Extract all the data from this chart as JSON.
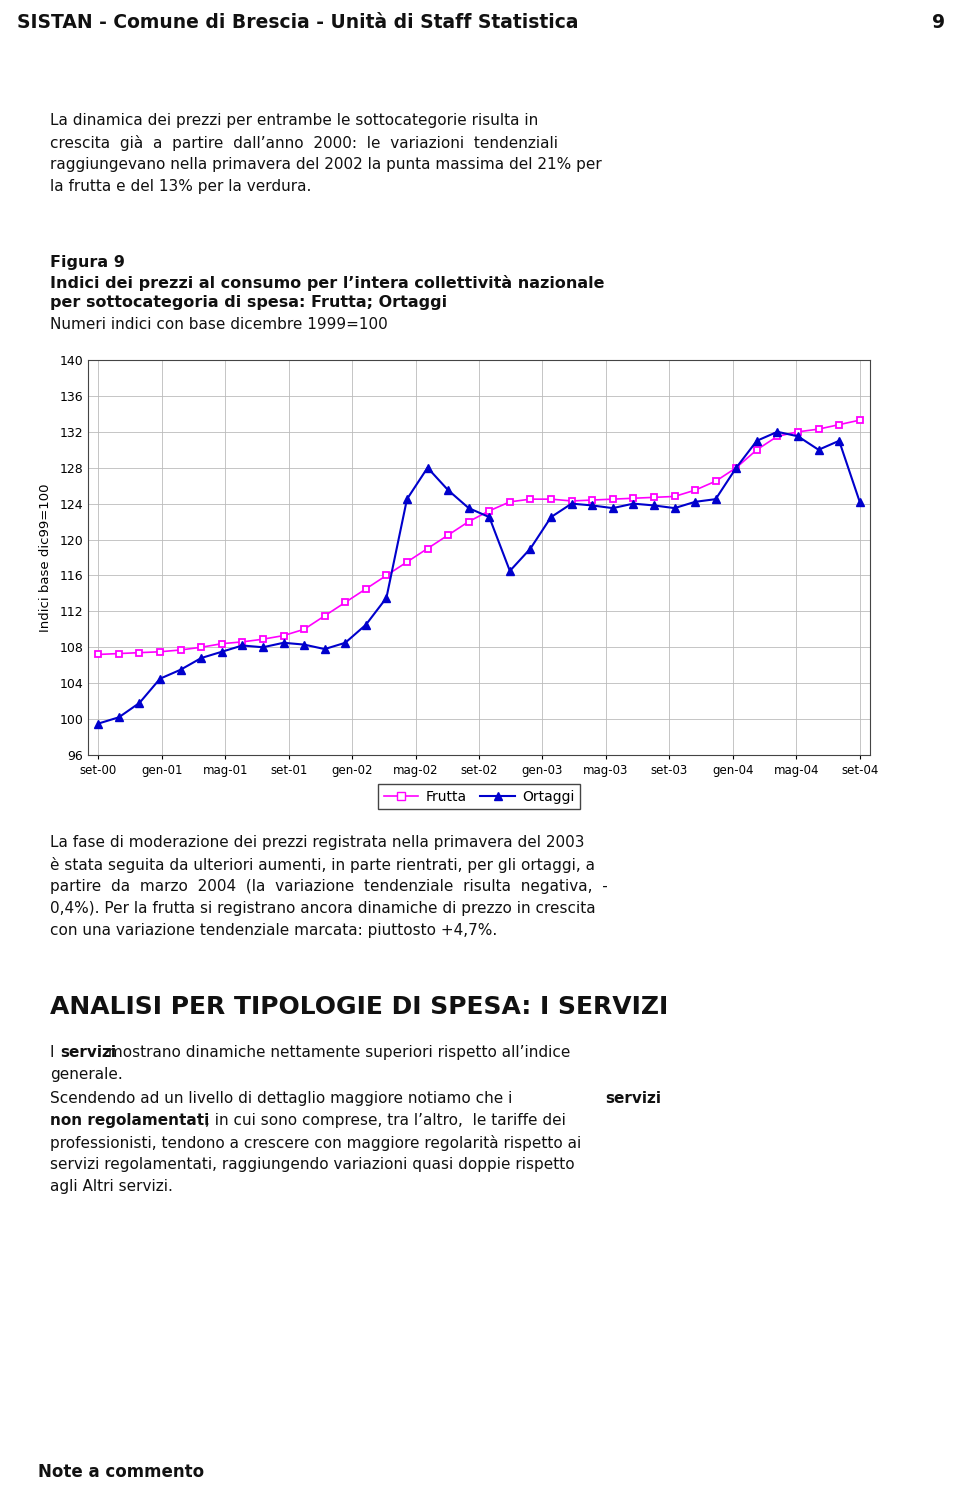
{
  "header_text": "SISTAN - Comune di Brescia - Unità di Staff Statistica",
  "header_page": "9",
  "header_bg": "#add8e6",
  "ylabel": "Indici base dic99=100",
  "ylim": [
    96,
    140
  ],
  "yticks": [
    96,
    100,
    104,
    108,
    112,
    116,
    120,
    124,
    128,
    132,
    136,
    140
  ],
  "xtick_labels": [
    "set-00",
    "gen-01",
    "mag-01",
    "set-01",
    "gen-02",
    "mag-02",
    "set-02",
    "gen-03",
    "mag-03",
    "set-03",
    "gen-04",
    "mag-04",
    "set-04"
  ],
  "frutta_color": "#ff00ff",
  "ortaggi_color": "#0000cc",
  "frutta_values": [
    107.2,
    107.3,
    107.4,
    107.5,
    107.7,
    108.0,
    108.4,
    108.6,
    108.9,
    109.3,
    110.0,
    111.5,
    113.0,
    114.5,
    116.0,
    117.5,
    119.0,
    120.5,
    122.0,
    123.2,
    124.2,
    124.5,
    124.5,
    124.3,
    124.4,
    124.5,
    124.6,
    124.7,
    124.8,
    125.5,
    126.5,
    128.0,
    130.0,
    131.5,
    132.0,
    132.3,
    132.8,
    133.3
  ],
  "ortaggi_values": [
    99.5,
    100.2,
    101.8,
    104.5,
    105.5,
    106.8,
    107.5,
    108.2,
    108.0,
    108.5,
    108.3,
    107.8,
    108.5,
    110.5,
    113.5,
    124.5,
    128.0,
    125.5,
    123.5,
    122.5,
    116.5,
    119.0,
    122.5,
    124.0,
    123.8,
    123.5,
    124.0,
    123.8,
    123.5,
    124.2,
    124.5,
    128.0,
    131.0,
    132.0,
    131.5,
    130.0,
    131.0,
    124.2
  ],
  "n_points": 38,
  "legend_frutta": "Frutta",
  "legend_ortaggi": "Ortaggi",
  "bg_color": "#ffffff",
  "footer_bg": "#add8e6",
  "footer_text": "Note a commento"
}
